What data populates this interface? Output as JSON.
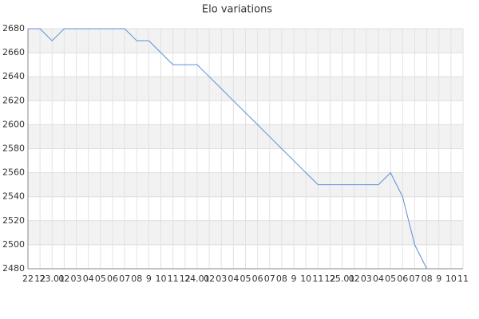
{
  "chart_data": {
    "type": "line",
    "title": "Elo variations",
    "categories": [
      "22",
      "12",
      "23.01",
      "02",
      "03",
      "04",
      "05",
      "06",
      "07",
      "08",
      "9",
      "10",
      "11",
      "12",
      "24.01",
      "02",
      "03",
      "04",
      "05",
      "06",
      "07",
      "08",
      "9",
      "10",
      "11",
      "12",
      "25.01",
      "02",
      "03",
      "04",
      "05",
      "06",
      "07",
      "08",
      "9",
      "10",
      "11"
    ],
    "series": [
      {
        "name": "Elo",
        "color": "#5b8fd9",
        "values": [
          2680,
          2680,
          2670,
          2680,
          2680,
          2680,
          2680,
          2680,
          2680,
          2670,
          2670,
          2660,
          2650,
          2650,
          2650,
          2640,
          2630,
          2620,
          2610,
          2600,
          2590,
          2580,
          2570,
          2560,
          2550,
          2550,
          2550,
          2550,
          2550,
          2550,
          2560,
          2540,
          2500,
          2480,
          null,
          null,
          null
        ]
      }
    ],
    "ylim": [
      2480,
      2680
    ],
    "yticks": [
      2480,
      2500,
      2520,
      2540,
      2560,
      2580,
      2600,
      2620,
      2640,
      2660,
      2680
    ],
    "grid": true
  }
}
